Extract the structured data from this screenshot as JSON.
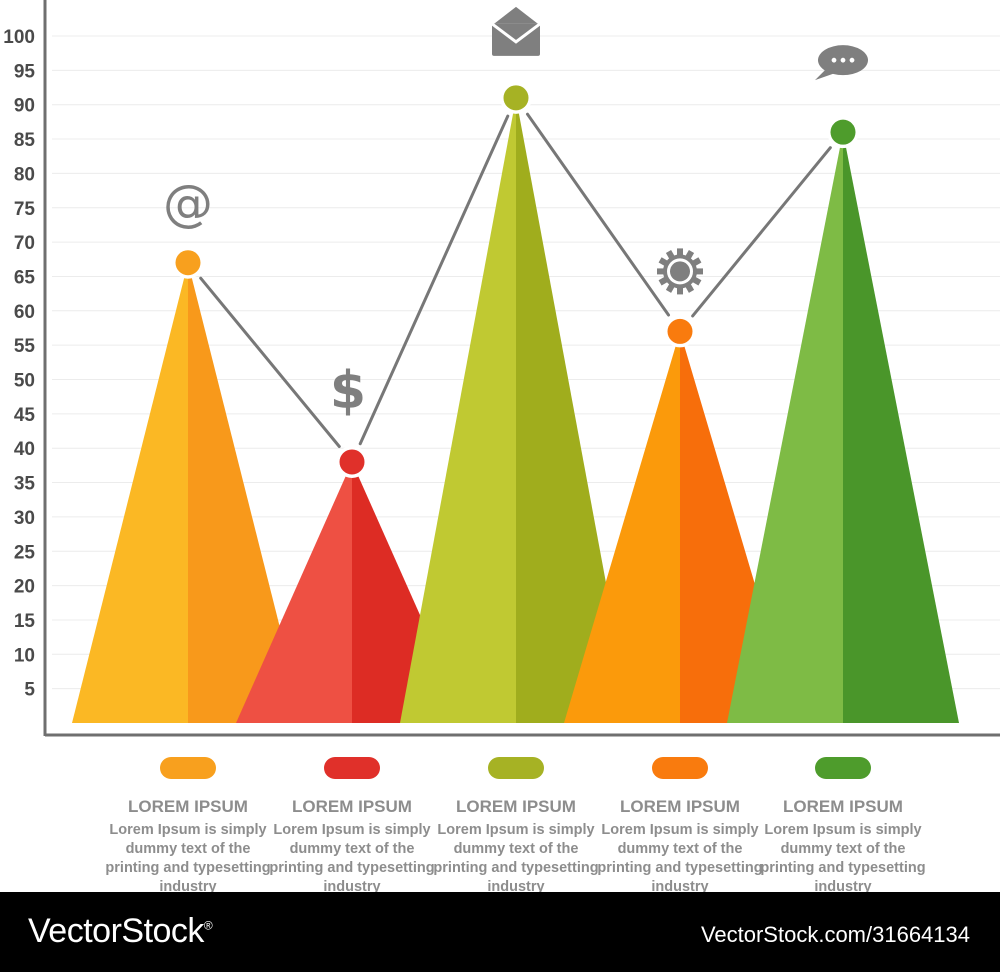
{
  "chart_data": {
    "type": "line",
    "categories": [
      "LOREM IPSUM",
      "LOREM IPSUM",
      "LOREM IPSUM",
      "LOREM IPSUM",
      "LOREM IPSUM"
    ],
    "values": [
      67,
      38,
      91,
      57,
      86
    ],
    "ylim": [
      0,
      100
    ],
    "yticks": [
      5,
      10,
      15,
      20,
      25,
      30,
      35,
      40,
      45,
      50,
      55,
      60,
      65,
      70,
      75,
      80,
      85,
      90,
      95,
      100
    ],
    "grid": true,
    "colors": {
      "light": [
        "#FBB824",
        "#EE5043",
        "#C0C932",
        "#FB9A0B",
        "#7EBB45"
      ],
      "dark": [
        "#F8991B",
        "#DD2C24",
        "#A0AD1D",
        "#F76E0B",
        "#4A962A"
      ],
      "dot": [
        "#F8A01E",
        "#E0302A",
        "#A6B224",
        "#F97B0E",
        "#4E9C2C"
      ],
      "line": "#777777",
      "icon": "#7f7f7f"
    },
    "icons": [
      "at-icon",
      "dollar-icon",
      "envelope-icon",
      "gear-icon",
      "chat-icon"
    ]
  },
  "legend": [
    {
      "title": "LOREM IPSUM",
      "desc": "Lorem Ipsum is simply dummy text of the printing and typesetting industry"
    },
    {
      "title": "LOREM IPSUM",
      "desc": "Lorem Ipsum is simply dummy text of the printing and typesetting industry"
    },
    {
      "title": "LOREM IPSUM",
      "desc": "Lorem Ipsum is simply dummy text of the printing and typesetting industry"
    },
    {
      "title": "LOREM IPSUM",
      "desc": "Lorem Ipsum is simply dummy text of the printing and typesetting industry"
    },
    {
      "title": "LOREM IPSUM",
      "desc": "Lorem Ipsum is simply dummy text of the printing and typesetting industry"
    }
  ],
  "footer": {
    "brand": "VectorStock",
    "trademark": "®",
    "credit": "VectorStock.com/31664134"
  }
}
